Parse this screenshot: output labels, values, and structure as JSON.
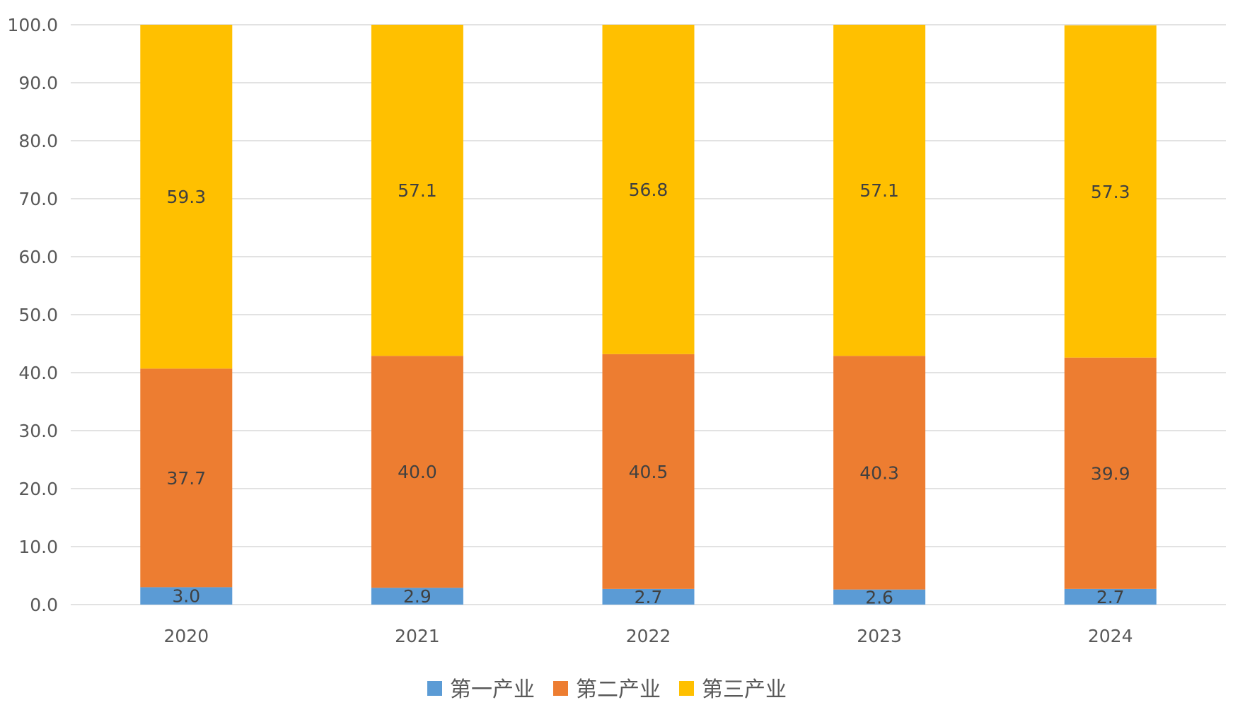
{
  "chart_data": {
    "type": "bar",
    "stacked": true,
    "categories": [
      "2020",
      "2021",
      "2022",
      "2023",
      "2024"
    ],
    "series": [
      {
        "name": "第一产业",
        "values": [
          3.0,
          2.9,
          2.7,
          2.6,
          2.7
        ],
        "color": "#5B9BD5"
      },
      {
        "name": "第二产业",
        "values": [
          37.7,
          40.0,
          40.5,
          40.3,
          39.9
        ],
        "color": "#ED7D31"
      },
      {
        "name": "第三产业",
        "values": [
          59.3,
          57.1,
          56.8,
          57.1,
          57.3
        ],
        "color": "#FFC000"
      }
    ],
    "y_ticks": [
      "0.0",
      "10.0",
      "20.0",
      "30.0",
      "40.0",
      "50.0",
      "60.0",
      "70.0",
      "80.0",
      "90.0",
      "100.0"
    ],
    "ylim": [
      0,
      100
    ],
    "grid": true,
    "legend_position": "bottom",
    "gridline_color": "#D9D9D9"
  }
}
